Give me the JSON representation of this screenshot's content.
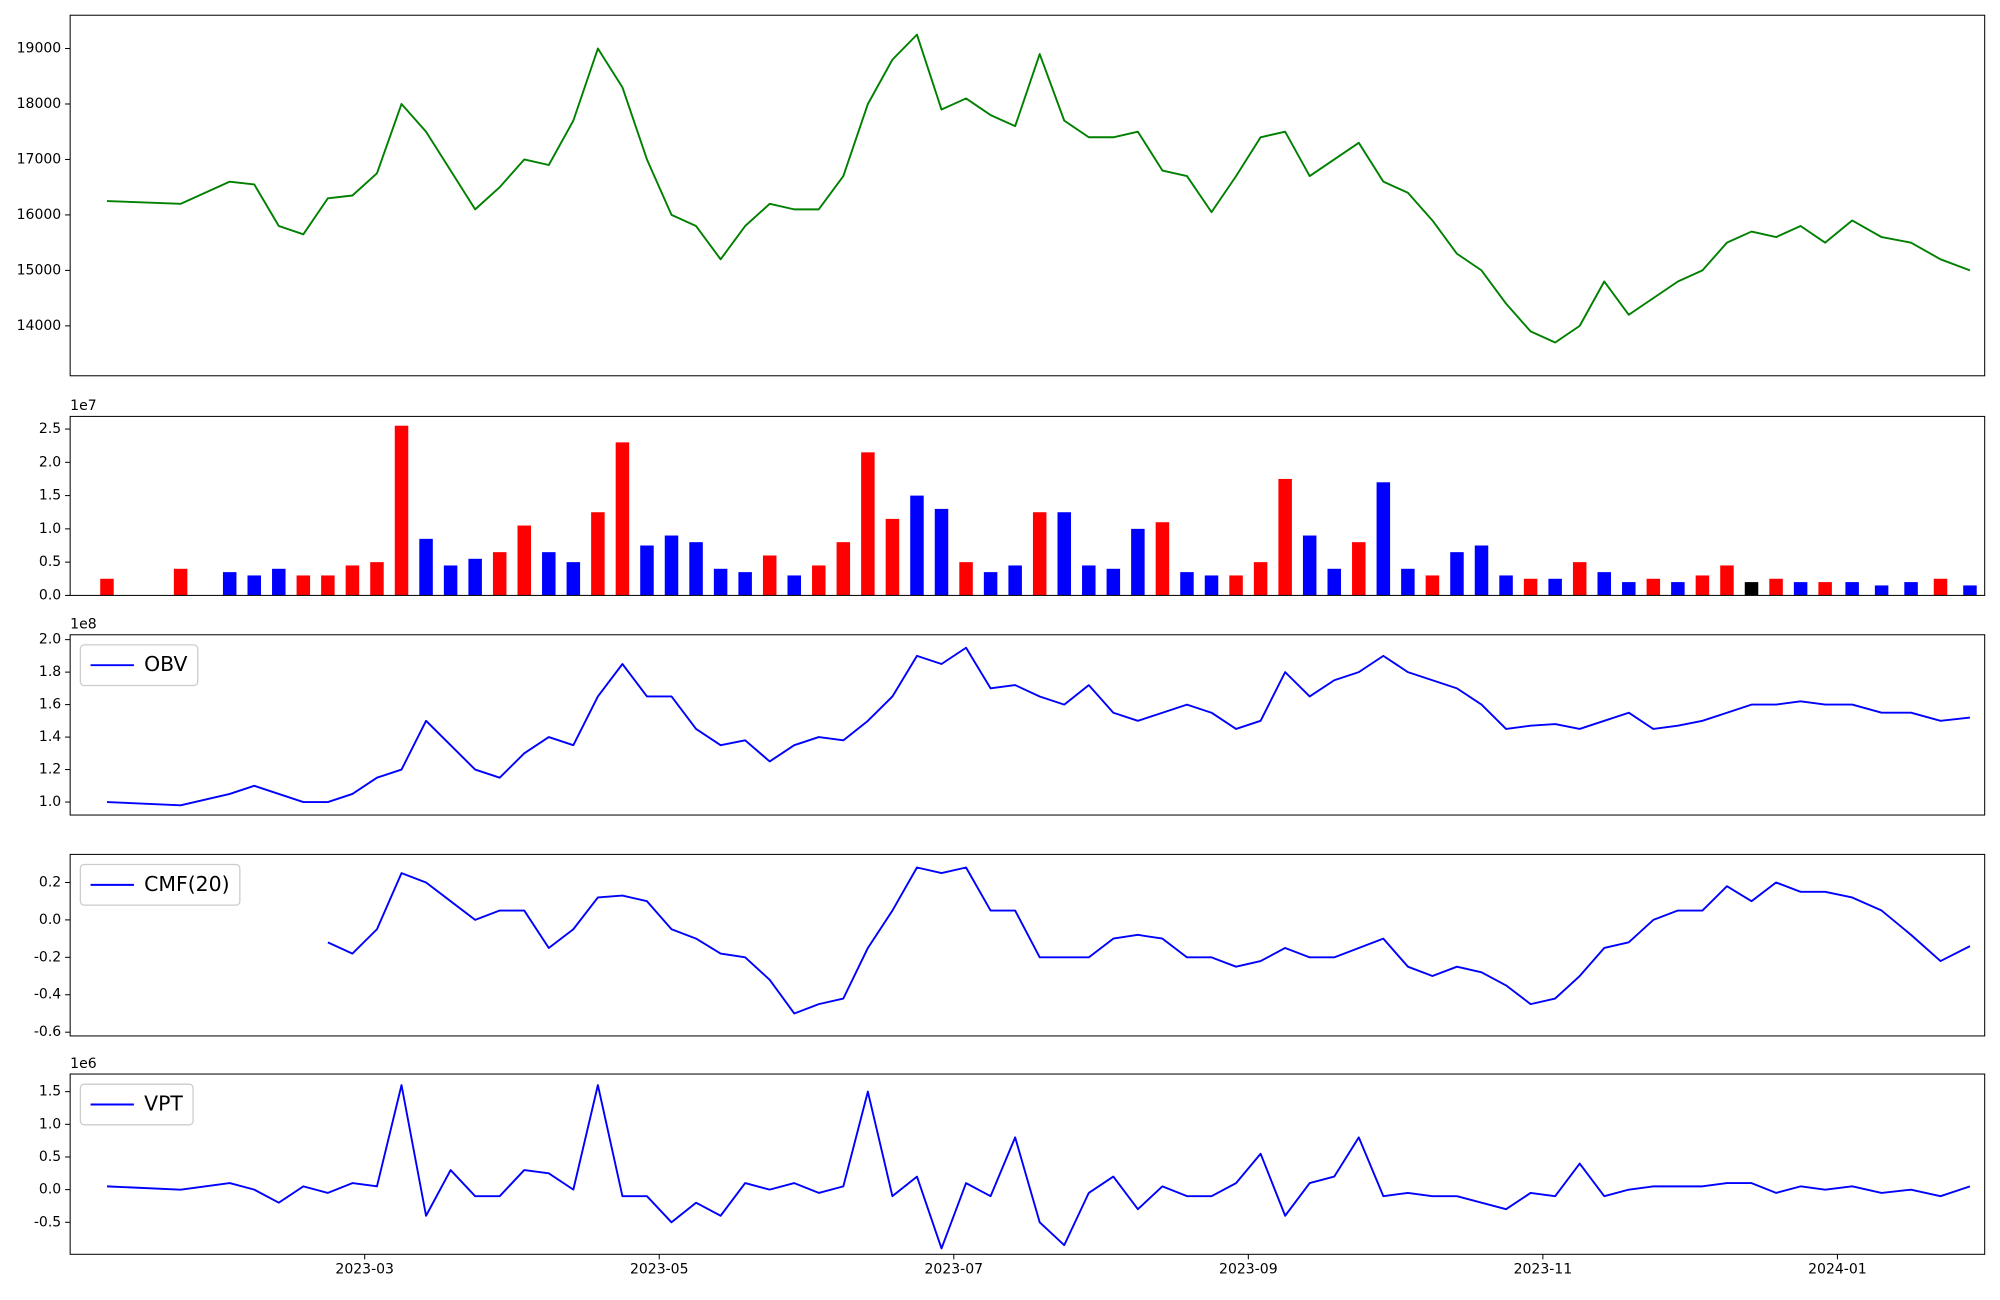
{
  "chart_data": {
    "type": "panels",
    "x": [
      "2023-01",
      "2023-01",
      "2023-02",
      "2023-02",
      "2023-02",
      "2023-02",
      "2023-02",
      "2023-02",
      "2023-03",
      "2023-03",
      "2023-03",
      "2023-03",
      "2023-03",
      "2023-03",
      "2023-04",
      "2023-04",
      "2023-04",
      "2023-04",
      "2023-04",
      "2023-04",
      "2023-05",
      "2023-05",
      "2023-05",
      "2023-05",
      "2023-05",
      "2023-05",
      "2023-06",
      "2023-06",
      "2023-06",
      "2023-06",
      "2023-06",
      "2023-06",
      "2023-07",
      "2023-07",
      "2023-07",
      "2023-07",
      "2023-07",
      "2023-07",
      "2023-08",
      "2023-08",
      "2023-08",
      "2023-08",
      "2023-08",
      "2023-08",
      "2023-09",
      "2023-09",
      "2023-09",
      "2023-09",
      "2023-09",
      "2023-09",
      "2023-10",
      "2023-10",
      "2023-10",
      "2023-10",
      "2023-10",
      "2023-10",
      "2023-11",
      "2023-11",
      "2023-11",
      "2023-11",
      "2023-11",
      "2023-11",
      "2023-12",
      "2023-12",
      "2023-12",
      "2023-12",
      "2023-12",
      "2023-12",
      "2024-01",
      "2024-01",
      "2024-01",
      "2024-01",
      "2024-01"
    ],
    "xlim": [
      "2023-01",
      "2024-02"
    ],
    "xticks": [
      "2023-03",
      "2023-05",
      "2023-07",
      "2023-09",
      "2023-11",
      "2024-01"
    ],
    "panels": [
      {
        "type": "line",
        "series": [
          {
            "color": "green",
            "values": [
              16250,
              16200,
              16600,
              16550,
              15800,
              15650,
              16300,
              16350,
              16750,
              18000,
              17500,
              16800,
              16100,
              16500,
              17000,
              16900,
              17700,
              19000,
              18300,
              17000,
              16000,
              15800,
              15200,
              15800,
              16200,
              16100,
              16100,
              16700,
              18000,
              18800,
              19250,
              17900,
              18100,
              17800,
              17600,
              18900,
              17700,
              17400,
              17400,
              17500,
              16800,
              16700,
              16050,
              16700,
              17400,
              17500,
              16700,
              17000,
              17300,
              16600,
              16400,
              15900,
              15300,
              15000,
              14400,
              13900,
              13700,
              14000,
              14800,
              14200,
              14500,
              14800,
              15000,
              15500,
              15700,
              15600,
              15800,
              15500,
              15900,
              15600,
              15500,
              15200,
              15000
            ]
          }
        ],
        "ylim": [
          13100,
          19600
        ],
        "yticks": [
          14000,
          15000,
          16000,
          17000,
          18000,
          19000
        ]
      },
      {
        "type": "bar",
        "offset_label": "1e7",
        "values": [
          0.25,
          0.4,
          0.35,
          0.3,
          0.4,
          0.3,
          0.3,
          0.45,
          0.5,
          2.55,
          0.85,
          0.45,
          0.55,
          0.65,
          1.05,
          0.65,
          0.5,
          1.25,
          2.3,
          0.75,
          0.9,
          0.8,
          0.4,
          0.35,
          0.6,
          0.3,
          0.45,
          0.8,
          2.15,
          1.15,
          1.5,
          1.3,
          0.5,
          0.35,
          0.45,
          1.25,
          1.25,
          0.45,
          0.4,
          1.0,
          1.1,
          0.35,
          0.3,
          0.3,
          0.5,
          1.75,
          0.9,
          0.4,
          0.8,
          1.7,
          0.4,
          0.3,
          0.65,
          0.75,
          0.3,
          0.25,
          0.25,
          0.5,
          0.35,
          0.2,
          0.25,
          0.2,
          0.3,
          0.45,
          0.2,
          0.25,
          0.2,
          0.2,
          0.2,
          0.15,
          0.2,
          0.25,
          0.15
        ],
        "colors": [
          "red",
          "red",
          "blue",
          "blue",
          "blue",
          "red",
          "red",
          "red",
          "red",
          "red",
          "blue",
          "blue",
          "blue",
          "red",
          "red",
          "blue",
          "blue",
          "red",
          "red",
          "blue",
          "blue",
          "blue",
          "blue",
          "blue",
          "red",
          "blue",
          "red",
          "red",
          "red",
          "red",
          "blue",
          "blue",
          "red",
          "blue",
          "blue",
          "red",
          "blue",
          "blue",
          "blue",
          "blue",
          "red",
          "blue",
          "blue",
          "red",
          "red",
          "red",
          "blue",
          "blue",
          "red",
          "blue",
          "blue",
          "red",
          "blue",
          "blue",
          "blue",
          "red",
          "blue",
          "red",
          "blue",
          "blue",
          "red",
          "blue",
          "red",
          "red",
          "black",
          "red",
          "blue",
          "red",
          "blue",
          "blue",
          "blue",
          "red",
          "blue"
        ],
        "ylim": [
          0,
          2.69
        ],
        "yticks": [
          {
            "value": 0,
            "label": "0.0"
          },
          0.5,
          {
            "value": 1,
            "label": "1.0"
          },
          1.5,
          {
            "value": 2,
            "label": "2.0"
          },
          2.5
        ]
      },
      {
        "type": "line",
        "offset_label": "1e8",
        "legend": "upper left",
        "series": [
          {
            "name": "OBV",
            "color": "blue",
            "values": [
              1.0,
              0.98,
              1.05,
              1.1,
              1.05,
              1.0,
              1.0,
              1.05,
              1.15,
              1.2,
              1.5,
              1.35,
              1.2,
              1.15,
              1.3,
              1.4,
              1.35,
              1.65,
              1.85,
              1.65,
              1.65,
              1.45,
              1.35,
              1.38,
              1.25,
              1.35,
              1.4,
              1.38,
              1.5,
              1.65,
              1.9,
              1.85,
              1.95,
              1.7,
              1.72,
              1.65,
              1.6,
              1.72,
              1.55,
              1.5,
              1.55,
              1.6,
              1.55,
              1.45,
              1.5,
              1.8,
              1.65,
              1.75,
              1.8,
              1.9,
              1.8,
              1.75,
              1.7,
              1.6,
              1.45,
              1.47,
              1.48,
              1.45,
              1.5,
              1.55,
              1.45,
              1.47,
              1.5,
              1.55,
              1.6,
              1.6,
              1.62,
              1.6,
              1.6,
              1.55,
              1.55,
              1.5,
              1.52
            ]
          }
        ],
        "ylim": [
          0.92,
          2.03
        ],
        "yticks": [
          {
            "value": 1,
            "label": "1.0"
          },
          1.2,
          1.4,
          1.6,
          1.8,
          {
            "value": 2,
            "label": "2.0"
          }
        ]
      },
      {
        "type": "line",
        "legend": "upper left",
        "series": [
          {
            "name": "CMF(20)",
            "color": "blue",
            "values": [
              null,
              null,
              null,
              null,
              null,
              null,
              -0.12,
              -0.18,
              -0.05,
              0.25,
              0.2,
              0.1,
              0.0,
              0.05,
              0.05,
              -0.15,
              -0.05,
              0.12,
              0.13,
              0.1,
              -0.05,
              -0.1,
              -0.18,
              -0.2,
              -0.32,
              -0.5,
              -0.45,
              -0.42,
              -0.15,
              0.05,
              0.28,
              0.25,
              0.28,
              0.05,
              0.05,
              -0.2,
              -0.2,
              -0.2,
              -0.1,
              -0.08,
              -0.1,
              -0.2,
              -0.2,
              -0.25,
              -0.22,
              -0.15,
              -0.2,
              -0.2,
              -0.15,
              -0.1,
              -0.25,
              -0.3,
              -0.25,
              -0.28,
              -0.35,
              -0.45,
              -0.42,
              -0.3,
              -0.15,
              -0.12,
              0.0,
              0.05,
              0.05,
              0.18,
              0.1,
              0.2,
              0.15,
              0.15,
              0.12,
              0.05,
              -0.08,
              -0.22,
              -0.14
            ]
          }
        ],
        "ylim": [
          -0.62,
          0.35
        ],
        "yticks": [
          -0.6,
          -0.4,
          -0.2,
          {
            "value": 0,
            "label": "0.0"
          },
          0.2
        ]
      },
      {
        "type": "line",
        "offset_label": "1e6",
        "legend": "upper left",
        "series": [
          {
            "name": "VPT",
            "color": "blue",
            "values": [
              0.05,
              0.0,
              0.1,
              0.0,
              -0.2,
              0.05,
              -0.05,
              0.1,
              0.05,
              1.6,
              -0.4,
              0.3,
              -0.1,
              -0.1,
              0.3,
              0.25,
              0.0,
              1.6,
              -0.1,
              -0.1,
              -0.5,
              -0.2,
              -0.4,
              0.1,
              0.0,
              0.1,
              -0.05,
              0.05,
              1.5,
              -0.1,
              0.2,
              -0.9,
              0.1,
              -0.1,
              0.8,
              -0.5,
              -0.85,
              -0.05,
              0.2,
              -0.3,
              0.05,
              -0.1,
              -0.1,
              0.1,
              0.55,
              -0.4,
              0.1,
              0.2,
              0.8,
              -0.1,
              -0.05,
              -0.1,
              -0.1,
              -0.2,
              -0.3,
              -0.05,
              -0.1,
              0.4,
              -0.1,
              0.0,
              0.05,
              0.05,
              0.05,
              0.1,
              0.1,
              -0.05,
              0.05,
              0.0,
              0.05,
              -0.05,
              0.0,
              -0.1,
              0.05
            ]
          }
        ],
        "ylim": [
          -0.99,
          1.77
        ],
        "yticks": [
          -0.5,
          {
            "value": 0,
            "label": "0.0"
          },
          0.5,
          {
            "value": 1,
            "label": "1.0"
          },
          1.5
        ]
      }
    ]
  }
}
